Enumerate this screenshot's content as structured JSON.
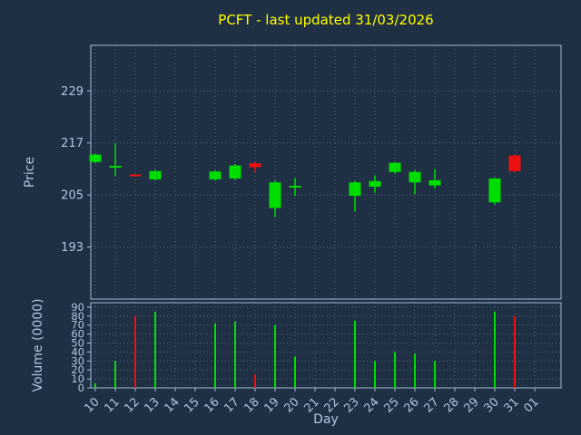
{
  "title": "PCFT - last updated 31/03/2026",
  "colors": {
    "background": "#1f3044",
    "title": "#ffff00",
    "label": "#b0c4de",
    "grid": "#4a6480",
    "spine": "#a3bad2",
    "up": "#00dd00",
    "down": "#ee1111"
  },
  "chart_data": {
    "type": "candlestick",
    "title": "PCFT - last updated 31/03/2026",
    "xlabel": "Day",
    "ylabel": "Price",
    "volume_ylabel": "Volume (0000)",
    "legend": "none",
    "grid": "dotted",
    "categories": [
      "10",
      "11",
      "12",
      "13",
      "14",
      "15",
      "16",
      "17",
      "18",
      "19",
      "20",
      "21",
      "22",
      "23",
      "24",
      "25",
      "26",
      "27",
      "28",
      "29",
      "30",
      "31",
      "01"
    ],
    "ohlc": [
      [
        212.6,
        214.6,
        212.3,
        214.3
      ],
      [
        211.3,
        216.9,
        209.4,
        211.7
      ],
      [
        209.7,
        209.9,
        209.2,
        209.4
      ],
      [
        208.6,
        210.8,
        208.3,
        210.5
      ],
      null,
      null,
      [
        208.6,
        210.7,
        208.3,
        210.4
      ],
      [
        208.8,
        212.1,
        208.5,
        211.8
      ],
      [
        212.3,
        212.6,
        210.2,
        211.4
      ],
      [
        202.0,
        208.3,
        199.9,
        207.9
      ],
      [
        206.7,
        208.9,
        204.8,
        207.1
      ],
      null,
      null,
      [
        204.8,
        208.2,
        201.2,
        207.9
      ],
      [
        206.9,
        209.5,
        205.5,
        208.2
      ],
      [
        210.3,
        212.6,
        209.9,
        212.4
      ],
      [
        207.9,
        210.7,
        205.2,
        210.3
      ],
      [
        207.2,
        211.0,
        206.5,
        208.4
      ],
      null,
      null,
      [
        203.3,
        209.0,
        202.8,
        208.8
      ],
      [
        214.1,
        214.3,
        210.3,
        210.5
      ],
      null
    ],
    "volume": [
      5,
      30,
      80,
      85,
      null,
      null,
      72,
      74,
      15,
      70,
      35,
      null,
      null,
      75,
      30,
      40,
      38,
      30,
      null,
      null,
      85,
      80,
      null
    ],
    "price_ticks": [
      193,
      205,
      217,
      229
    ],
    "price_ylim": [
      181,
      239.5
    ],
    "volume_ticks": [
      0,
      10,
      20,
      30,
      40,
      50,
      60,
      70,
      80,
      90
    ],
    "volume_ylim": [
      0,
      95
    ]
  }
}
